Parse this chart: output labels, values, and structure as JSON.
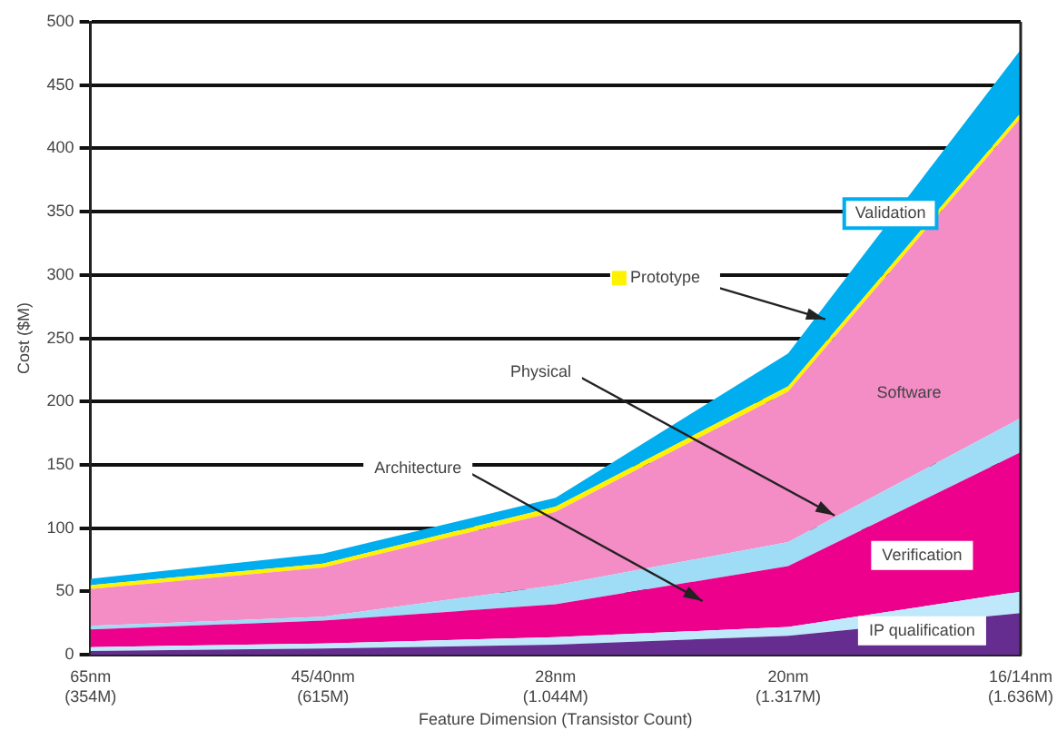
{
  "chart_data": {
    "type": "area",
    "stacked": true,
    "categories": [
      "65nm\n(354M)",
      "45/40nm\n(615M)",
      "28nm\n(1.044M)",
      "20nm\n(1.317M)",
      "16/14nm\n(1.636M)"
    ],
    "xlabel": "Feature Dimension (Transistor Count)",
    "ylabel": "Cost ($M)",
    "ylim": [
      0,
      500
    ],
    "yticks": [
      0,
      50,
      100,
      150,
      200,
      250,
      300,
      350,
      400,
      450,
      500
    ],
    "grid": "y",
    "series": [
      {
        "name": "IP qualification",
        "color": "#662d91",
        "values": [
          3,
          5,
          8,
          15,
          33
        ]
      },
      {
        "name": "Architecture",
        "color": "#bfe9fb",
        "values": [
          3,
          4,
          6,
          7,
          17
        ]
      },
      {
        "name": "Verification",
        "color": "#ec008c",
        "values": [
          14,
          18,
          26,
          48,
          110
        ]
      },
      {
        "name": "Physical",
        "color": "#9fdcf5",
        "values": [
          3,
          3,
          15,
          19,
          27
        ]
      },
      {
        "name": "Software",
        "color": "#f48cc6",
        "values": [
          29,
          39,
          58,
          119,
          237
        ]
      },
      {
        "name": "Prototype",
        "color": "#fff200",
        "values": [
          3,
          3,
          4,
          4,
          4
        ]
      },
      {
        "name": "Validation",
        "color": "#00aeef",
        "values": [
          5,
          8,
          7,
          26,
          50
        ]
      }
    ]
  }
}
